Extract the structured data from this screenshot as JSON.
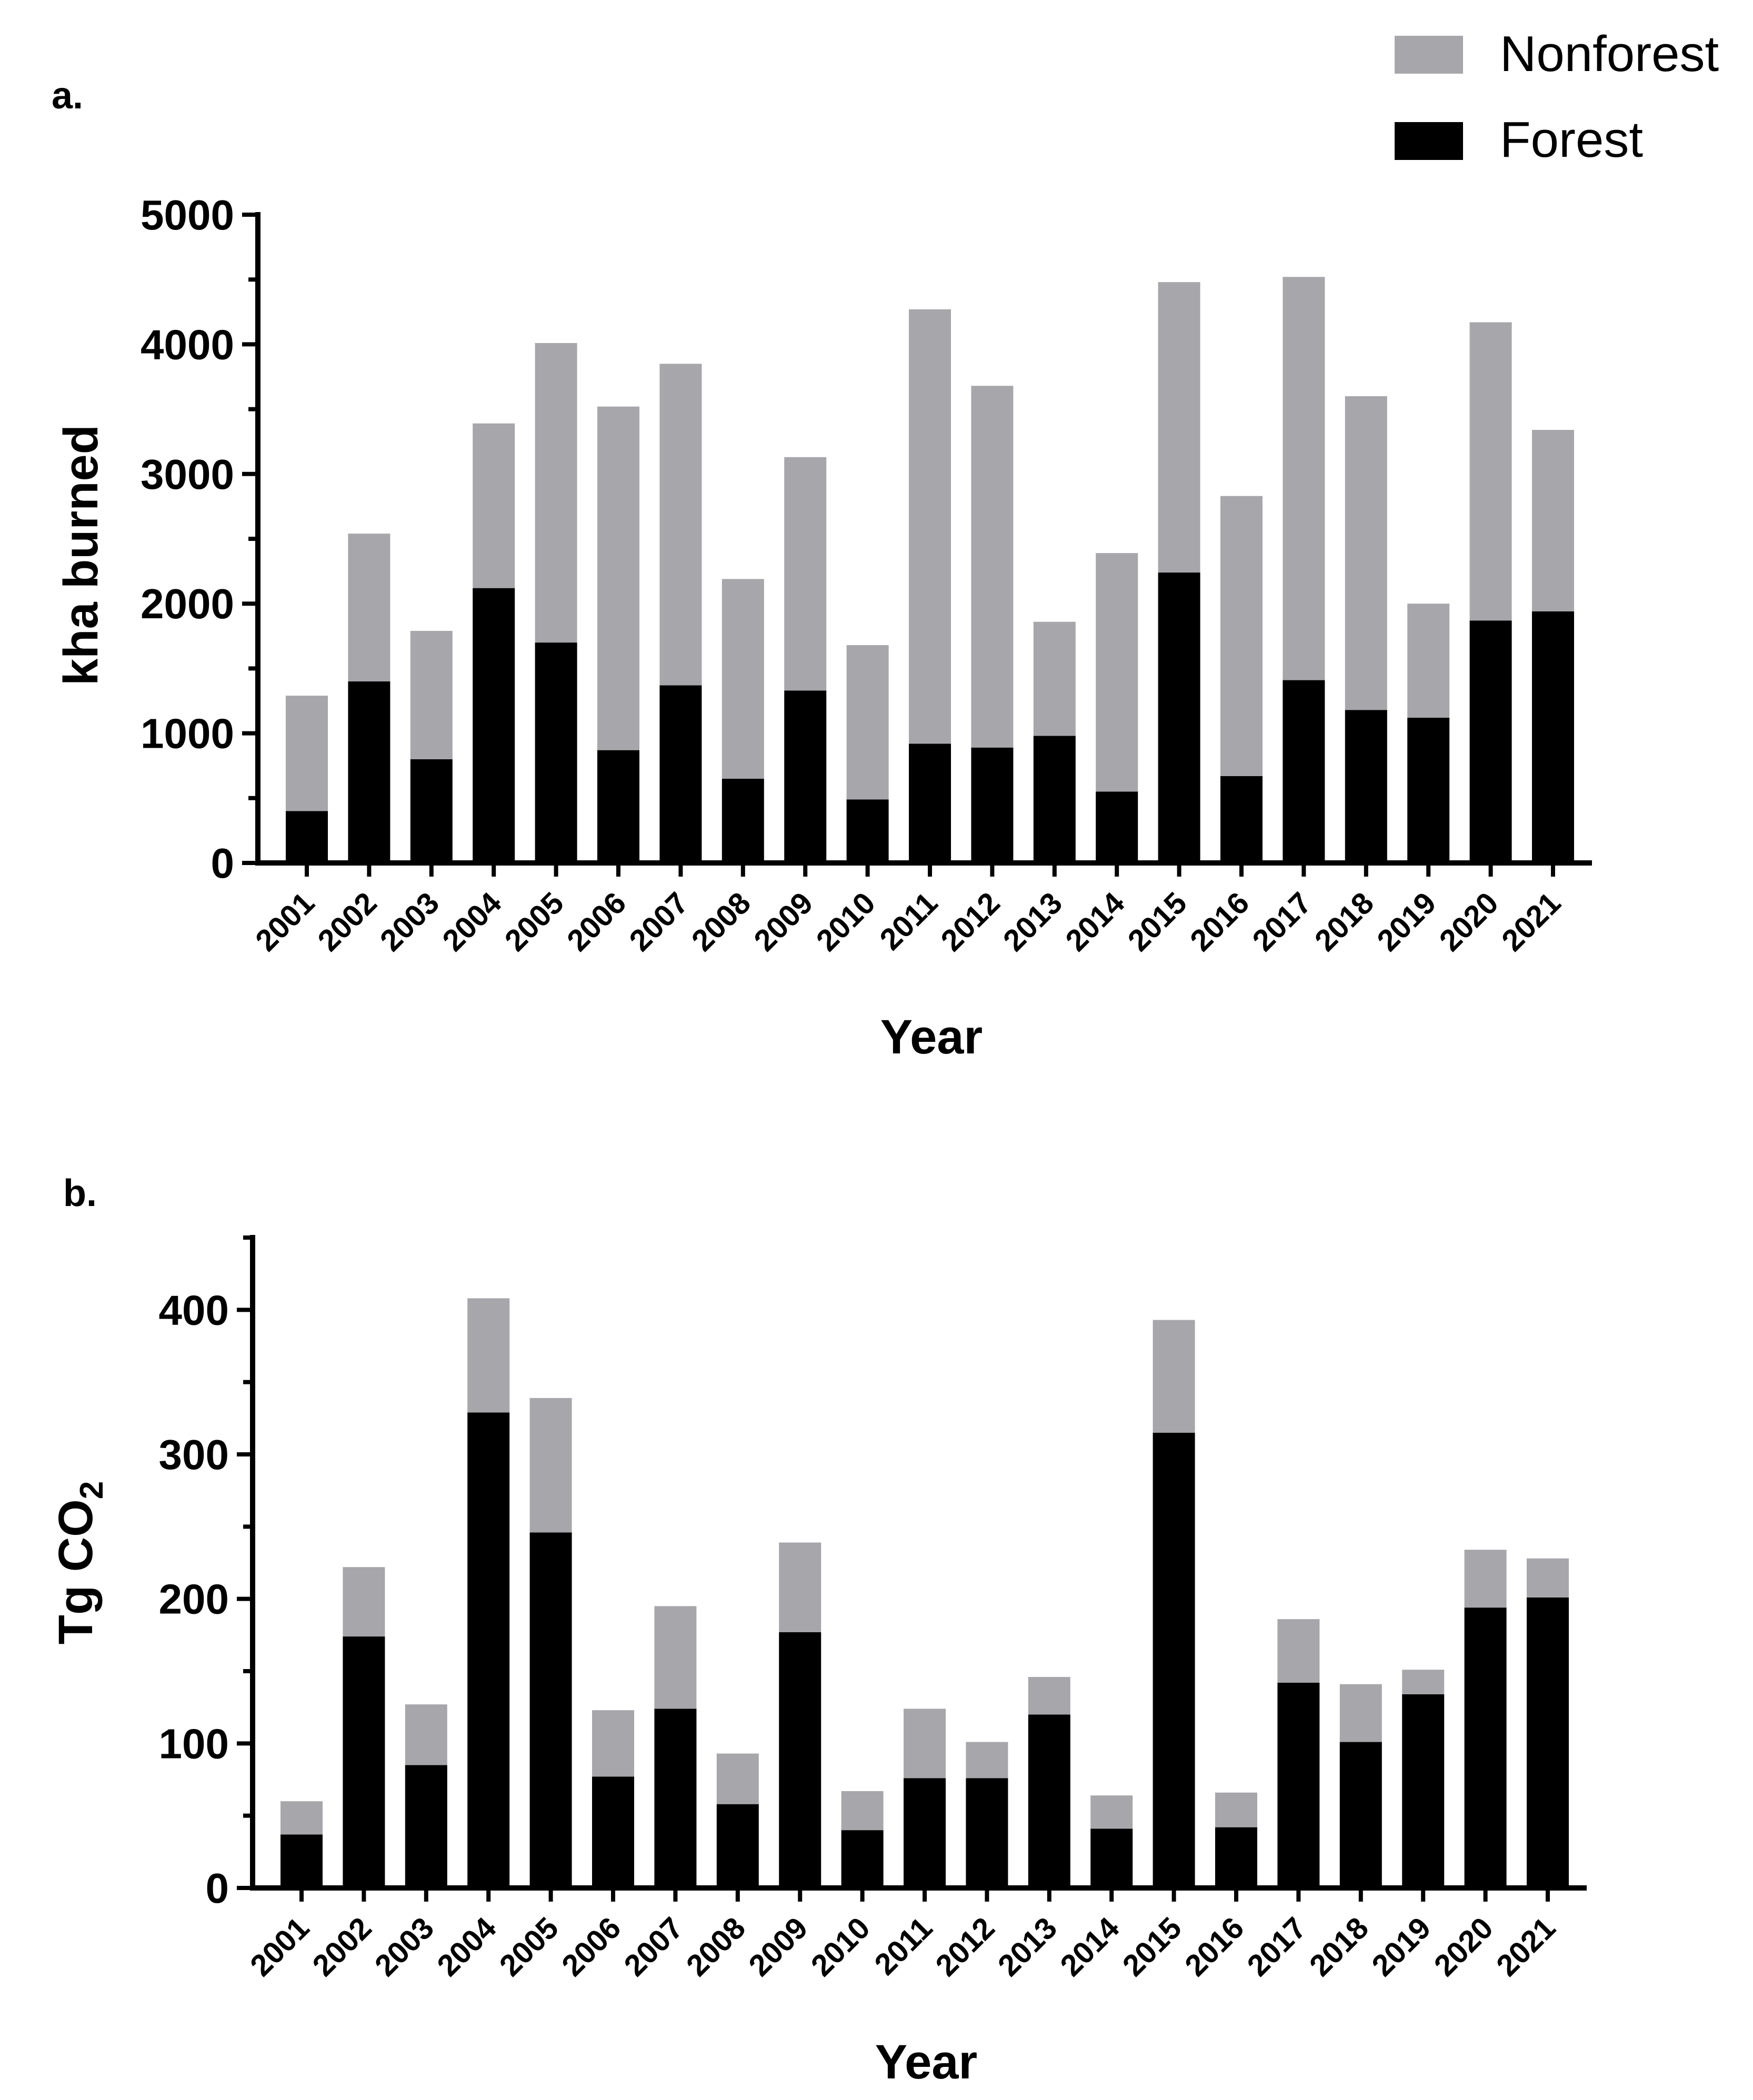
{
  "legend": {
    "nonforest_label": "Nonforest",
    "forest_label": "Forest"
  },
  "colors": {
    "forest": "#000000",
    "nonforest": "#a6a6ab"
  },
  "chart_data": [
    {
      "panel": "a.",
      "type": "bar",
      "stacked": true,
      "ylabel": "kha burned",
      "xlabel": "Year",
      "ylim": [
        0,
        5000
      ],
      "yticks": [
        "0",
        "1000",
        "2000",
        "3000",
        "4000",
        "5000"
      ],
      "yminor_step": 500,
      "categories": [
        "2001",
        "2002",
        "2003",
        "2004",
        "2005",
        "2006",
        "2007",
        "2008",
        "2009",
        "2010",
        "2011",
        "2012",
        "2013",
        "2014",
        "2015",
        "2016",
        "2017",
        "2018",
        "2019",
        "2020",
        "2021"
      ],
      "series": [
        {
          "name": "Forest",
          "values": [
            400,
            1400,
            800,
            2120,
            1700,
            870,
            1370,
            650,
            1330,
            490,
            920,
            890,
            980,
            550,
            2240,
            670,
            1410,
            1180,
            1120,
            1870,
            1940
          ]
        },
        {
          "name": "Nonforest",
          "values": [
            890,
            1140,
            990,
            1270,
            2310,
            2650,
            2480,
            1540,
            1800,
            1190,
            3350,
            2790,
            880,
            1840,
            2240,
            2160,
            3110,
            2420,
            880,
            2300,
            1400
          ]
        }
      ]
    },
    {
      "panel": "b.",
      "type": "bar",
      "stacked": true,
      "ylabel": "Tg CO",
      "ylabel_subscript": "2",
      "xlabel": "Year",
      "ylim": [
        0,
        450
      ],
      "yticks": [
        "0",
        "100",
        "200",
        "300",
        "400"
      ],
      "yminor_step": 50,
      "categories": [
        "2001",
        "2002",
        "2003",
        "2004",
        "2005",
        "2006",
        "2007",
        "2008",
        "2009",
        "2010",
        "2011",
        "2012",
        "2013",
        "2014",
        "2015",
        "2016",
        "2017",
        "2018",
        "2019",
        "2020",
        "2021"
      ],
      "series": [
        {
          "name": "Forest",
          "values": [
            37,
            174,
            85,
            329,
            246,
            77,
            124,
            58,
            177,
            40,
            76,
            76,
            120,
            41,
            315,
            42,
            142,
            101,
            134,
            194,
            201
          ]
        },
        {
          "name": "Nonforest",
          "values": [
            23,
            48,
            42,
            79,
            93,
            46,
            71,
            35,
            62,
            27,
            48,
            25,
            26,
            23,
            78,
            24,
            44,
            40,
            17,
            40,
            27
          ]
        }
      ]
    }
  ]
}
